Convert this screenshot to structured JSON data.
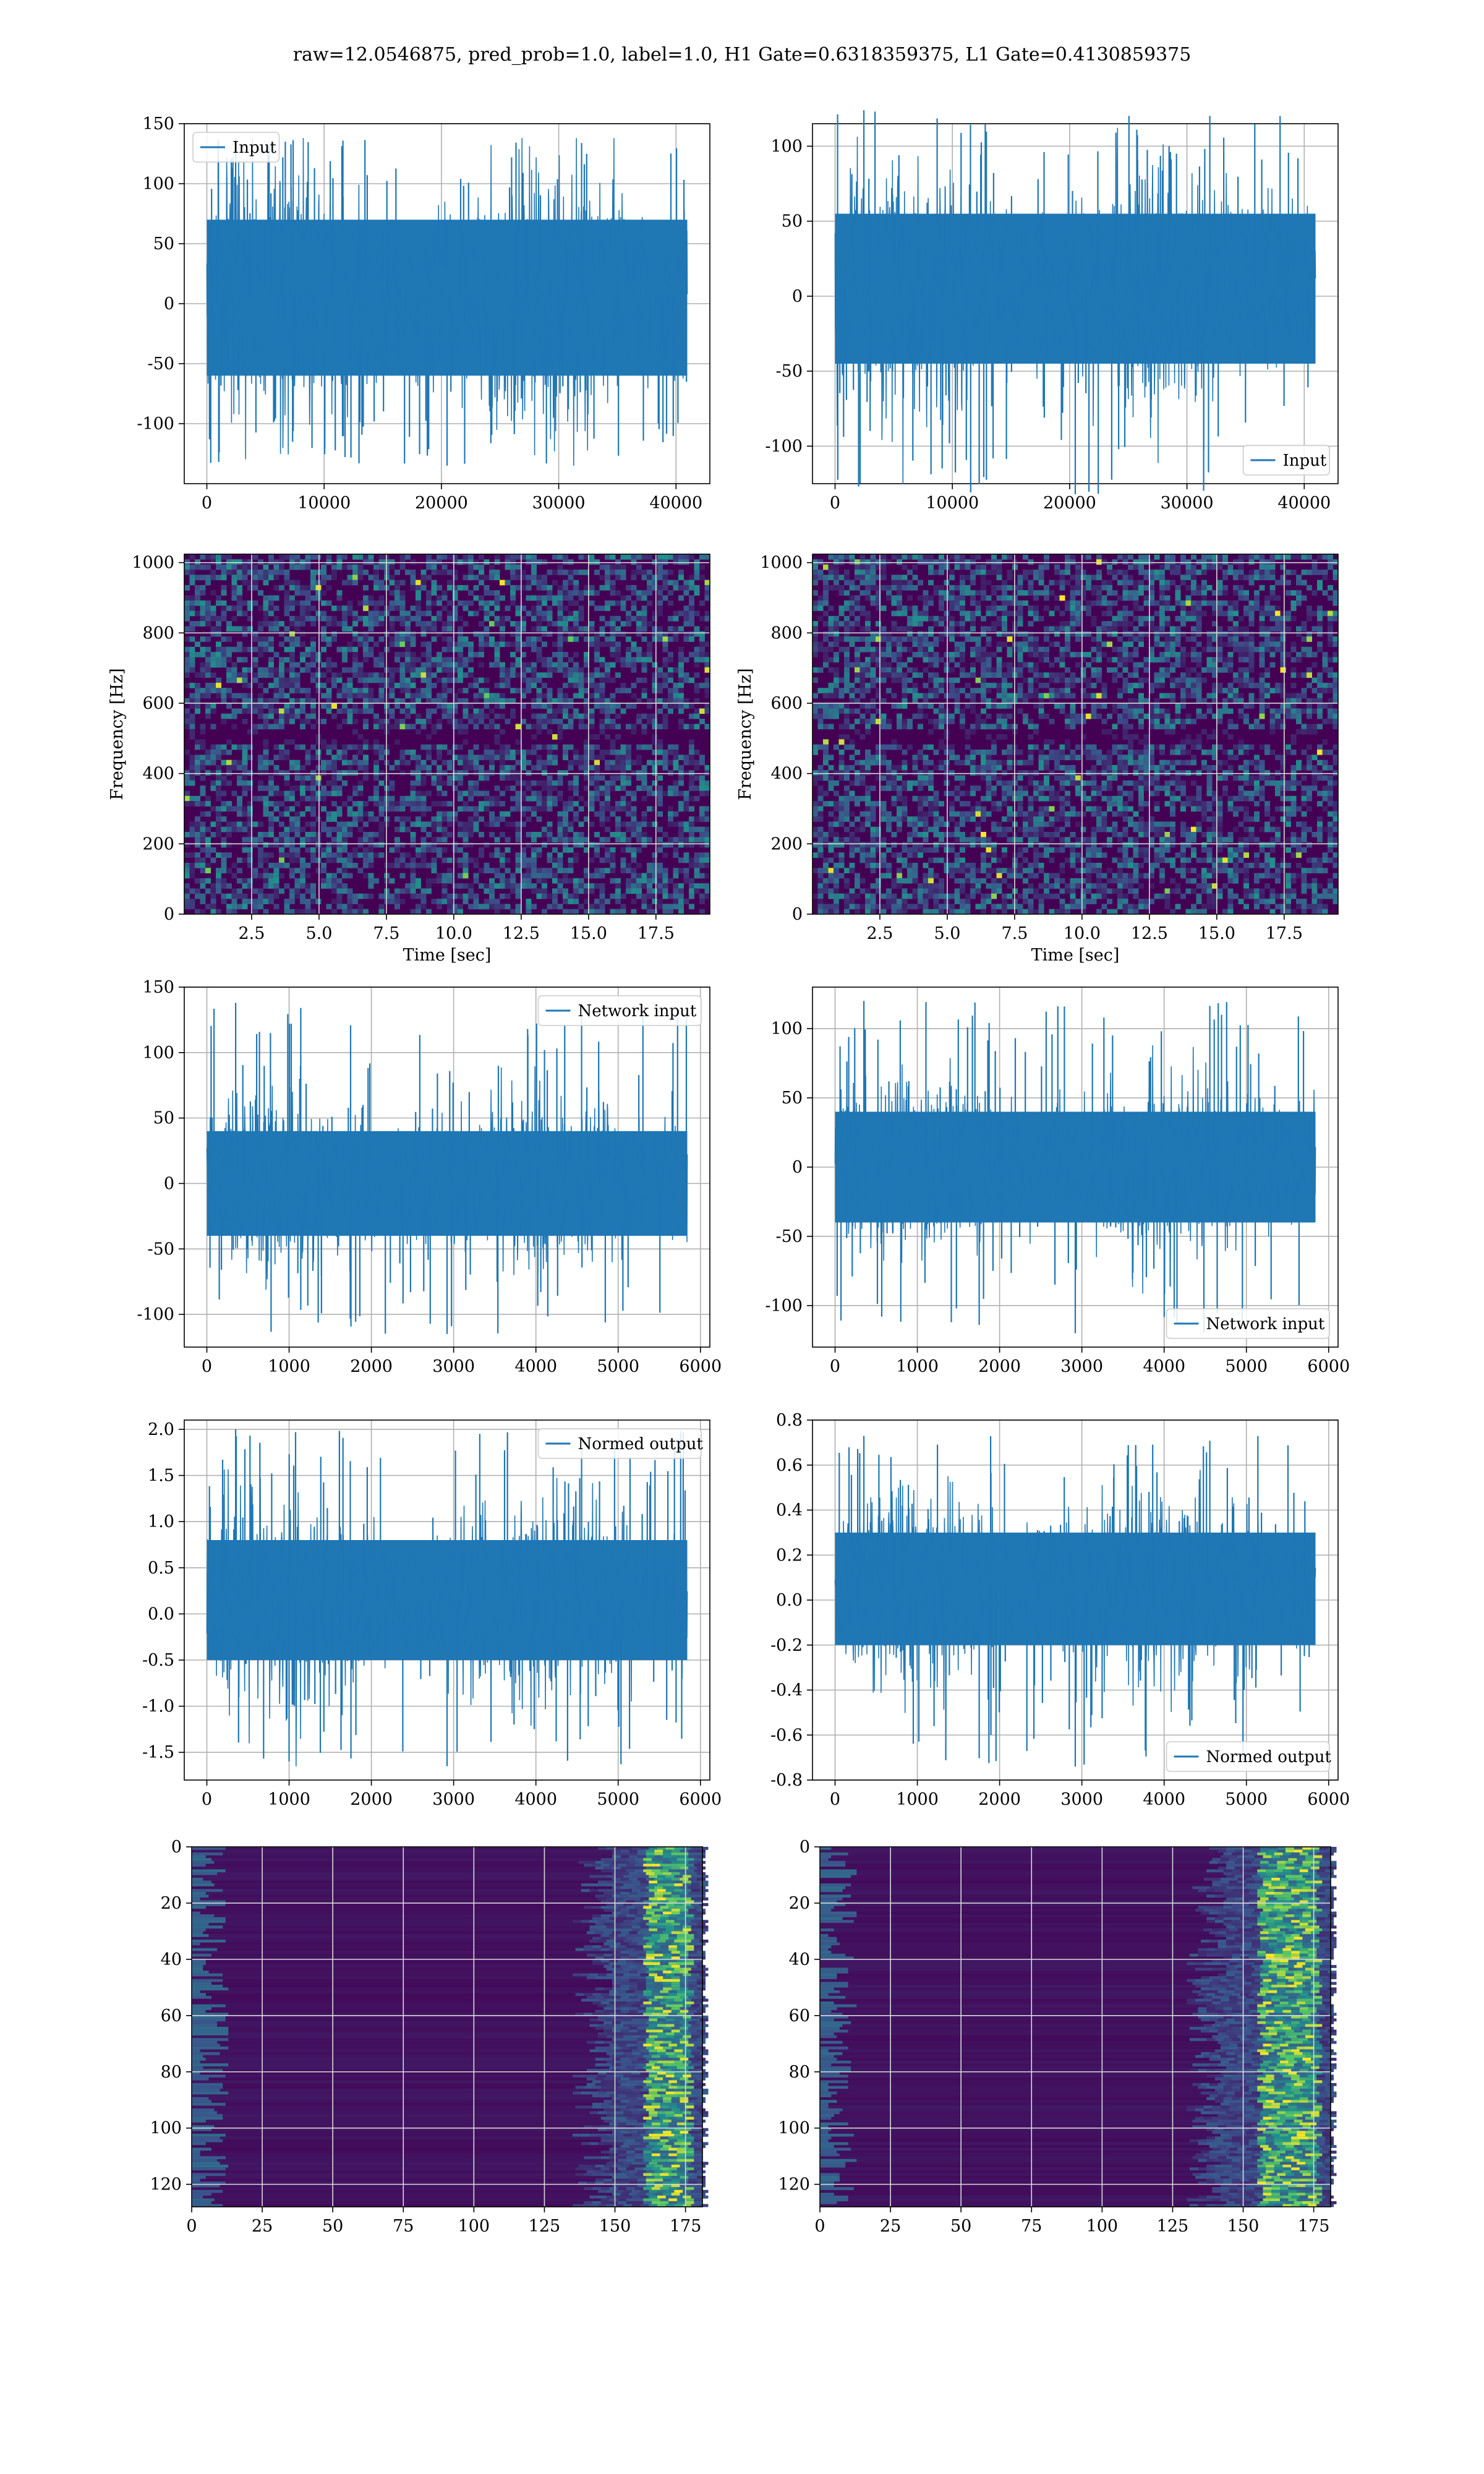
{
  "figure": {
    "title": "raw=12.0546875, pred_prob=1.0, label=1.0, H1 Gate=0.6318359375, L1 Gate=0.4130859375"
  },
  "colors": {
    "line": "#1f77b4",
    "grid": "#b0b0b0",
    "viridis_low": "#440154",
    "viridis_mid": "#21918c",
    "viridis_high": "#fde725"
  },
  "chart_data": [
    {
      "id": "input-h1",
      "type": "line",
      "title": "",
      "x_range": [
        0,
        40960
      ],
      "ylim": [
        -150,
        150
      ],
      "xticks": [
        0,
        10000,
        20000,
        30000,
        40000
      ],
      "yticks": [
        -100,
        -50,
        0,
        50,
        100,
        150
      ],
      "xlabel": "",
      "ylabel": "",
      "series": [
        {
          "name": "Input",
          "min": -135,
          "max": 138,
          "core_range": [
            -60,
            70
          ]
        }
      ],
      "legend": "upper-left",
      "grid": true
    },
    {
      "id": "input-l1",
      "type": "line",
      "title": "",
      "x_range": [
        0,
        40960
      ],
      "ylim": [
        -125,
        115
      ],
      "xticks": [
        0,
        10000,
        20000,
        30000,
        40000
      ],
      "yticks": [
        -100,
        -50,
        0,
        50,
        100
      ],
      "xlabel": "",
      "ylabel": "",
      "series": [
        {
          "name": "Input",
          "min": -132,
          "max": 124,
          "core_range": [
            -45,
            55
          ]
        }
      ],
      "legend": "lower-right",
      "grid": true
    },
    {
      "id": "spectrogram-h1",
      "type": "heatmap",
      "title": "",
      "xlim": [
        0,
        19.5
      ],
      "ylim": [
        0,
        1024
      ],
      "xticks": [
        2.5,
        5.0,
        7.5,
        10.0,
        12.5,
        15.0,
        17.5
      ],
      "yticks": [
        0,
        200,
        400,
        600,
        800,
        1000
      ],
      "xlabel": "Time [sec]",
      "ylabel": "Frequency [Hz]",
      "dark_band_hz": [
        480,
        520
      ],
      "grid": true
    },
    {
      "id": "spectrogram-l1",
      "type": "heatmap",
      "title": "",
      "xlim": [
        0,
        19.5
      ],
      "ylim": [
        0,
        1024
      ],
      "xticks": [
        2.5,
        5.0,
        7.5,
        10.0,
        12.5,
        15.0,
        17.5
      ],
      "yticks": [
        0,
        200,
        400,
        600,
        800,
        1000
      ],
      "xlabel": "Time [sec]",
      "ylabel": "Frequency [Hz]",
      "dark_band_hz": [
        480,
        520
      ],
      "grid": true
    },
    {
      "id": "network-input-h1",
      "type": "line",
      "title": "",
      "x_range": [
        0,
        5840
      ],
      "ylim": [
        -125,
        150
      ],
      "xticks": [
        0,
        1000,
        2000,
        3000,
        4000,
        5000,
        6000
      ],
      "yticks": [
        -100,
        -50,
        0,
        50,
        100,
        150
      ],
      "xlabel": "",
      "ylabel": "",
      "series": [
        {
          "name": "Network input",
          "min": -115,
          "max": 138,
          "core_range": [
            -40,
            40
          ]
        }
      ],
      "legend": "upper-right",
      "grid": true
    },
    {
      "id": "network-input-l1",
      "type": "line",
      "title": "",
      "x_range": [
        0,
        5840
      ],
      "ylim": [
        -130,
        130
      ],
      "xticks": [
        0,
        1000,
        2000,
        3000,
        4000,
        5000,
        6000
      ],
      "yticks": [
        -100,
        -50,
        0,
        50,
        100
      ],
      "xlabel": "",
      "ylabel": "",
      "series": [
        {
          "name": "Network input",
          "min": -120,
          "max": 120,
          "core_range": [
            -40,
            40
          ]
        }
      ],
      "legend": "lower-right",
      "grid": true
    },
    {
      "id": "normed-output-h1",
      "type": "line",
      "title": "",
      "x_range": [
        0,
        5840
      ],
      "ylim": [
        -1.8,
        2.1
      ],
      "xticks": [
        0,
        1000,
        2000,
        3000,
        4000,
        5000,
        6000
      ],
      "yticks": [
        -1.5,
        -1.0,
        -0.5,
        0.0,
        0.5,
        1.0,
        1.5,
        2.0
      ],
      "xlabel": "",
      "ylabel": "",
      "series": [
        {
          "name": "Normed output",
          "min": -1.65,
          "max": 2.0,
          "core_range": [
            -0.5,
            0.8
          ]
        }
      ],
      "legend": "upper-right",
      "grid": true
    },
    {
      "id": "normed-output-l1",
      "type": "line",
      "title": "",
      "x_range": [
        0,
        5840
      ],
      "ylim": [
        -0.8,
        0.8
      ],
      "xticks": [
        0,
        1000,
        2000,
        3000,
        4000,
        5000,
        6000
      ],
      "yticks": [
        -0.8,
        -0.6,
        -0.4,
        -0.2,
        0.0,
        0.2,
        0.4,
        0.6,
        0.8
      ],
      "xlabel": "",
      "ylabel": "",
      "series": [
        {
          "name": "Normed output",
          "min": -0.74,
          "max": 0.73,
          "core_range": [
            -0.2,
            0.3
          ]
        }
      ],
      "legend": "lower-right",
      "grid": true
    },
    {
      "id": "feature-map-h1",
      "type": "heatmap",
      "title": "",
      "xlim": [
        0,
        181
      ],
      "ylim": [
        128,
        0
      ],
      "xticks": [
        0,
        25,
        50,
        75,
        100,
        125,
        150,
        175
      ],
      "yticks": [
        0,
        20,
        40,
        60,
        80,
        100,
        120
      ],
      "xlabel": "",
      "ylabel": "",
      "hot_columns": [
        160,
        175
      ],
      "grid": true
    },
    {
      "id": "feature-map-l1",
      "type": "heatmap",
      "title": "",
      "xlim": [
        0,
        181
      ],
      "ylim": [
        128,
        0
      ],
      "xticks": [
        0,
        25,
        50,
        75,
        100,
        125,
        150,
        175
      ],
      "yticks": [
        0,
        20,
        40,
        60,
        80,
        100,
        120
      ],
      "xlabel": "",
      "ylabel": "",
      "hot_columns": [
        155,
        175
      ],
      "grid": true
    }
  ]
}
